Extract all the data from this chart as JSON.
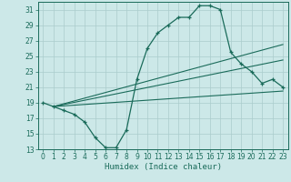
{
  "xlabel": "Humidex (Indice chaleur)",
  "xlim": [
    -0.5,
    23.5
  ],
  "ylim": [
    13,
    32
  ],
  "yticks": [
    13,
    15,
    17,
    19,
    21,
    23,
    25,
    27,
    29,
    31
  ],
  "xticks": [
    0,
    1,
    2,
    3,
    4,
    5,
    6,
    7,
    8,
    9,
    10,
    11,
    12,
    13,
    14,
    15,
    16,
    17,
    18,
    19,
    20,
    21,
    22,
    23
  ],
  "bg_color": "#cce8e8",
  "grid_color": "#aacccc",
  "line_color": "#1a6b5a",
  "main_x": [
    0,
    1,
    2,
    3,
    4,
    5,
    6,
    7,
    8,
    9,
    10,
    11,
    12,
    13,
    14,
    15,
    16,
    17,
    18,
    19,
    20,
    21,
    22,
    23
  ],
  "main_y": [
    19,
    18.5,
    18,
    17.5,
    16.5,
    14.5,
    13.2,
    13.2,
    15.5,
    22,
    26,
    28,
    29,
    30,
    30,
    31.5,
    31.5,
    31,
    25.5,
    24,
    23,
    21.5,
    22,
    21
  ],
  "line2_x": [
    1,
    23
  ],
  "line2_y": [
    18.5,
    20.5
  ],
  "line3_x": [
    1,
    23
  ],
  "line3_y": [
    18.5,
    24.5
  ],
  "line4_x": [
    1,
    23
  ],
  "line4_y": [
    18.5,
    26.5
  ]
}
